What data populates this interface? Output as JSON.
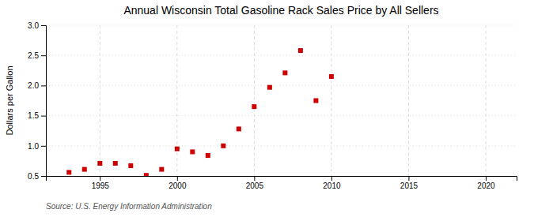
{
  "chart_data": {
    "type": "scatter",
    "title": "Annual Wisconsin Total Gasoline Rack Sales Price by All Sellers",
    "y_label": "Dollars per Gallon",
    "annotation": "Source: U.S. Energy Information Administration",
    "x": [
      1993,
      1994,
      1995,
      1996,
      1997,
      1998,
      1999,
      2000,
      2001,
      2002,
      2003,
      2004,
      2005,
      2006,
      2007,
      2008,
      2009,
      2010
    ],
    "values": [
      0.56,
      0.61,
      0.71,
      0.71,
      0.67,
      0.51,
      0.61,
      0.95,
      0.9,
      0.84,
      1.0,
      1.28,
      1.65,
      1.97,
      2.21,
      2.58,
      1.75,
      2.15
    ],
    "color": "#cc0000",
    "marker": "square",
    "xlim": [
      1991.5,
      2022
    ],
    "ylim": [
      0.5,
      3.0
    ],
    "xticks": [
      1995,
      2000,
      2005,
      2010,
      2015,
      2020
    ],
    "yticks": [
      0.5,
      {
        "value": 1.0,
        "label": "1.0"
      },
      1.5,
      {
        "value": 2.0,
        "label": "2.0"
      },
      2.5,
      {
        "value": 3.0,
        "label": "3.0"
      }
    ],
    "grid": true
  }
}
